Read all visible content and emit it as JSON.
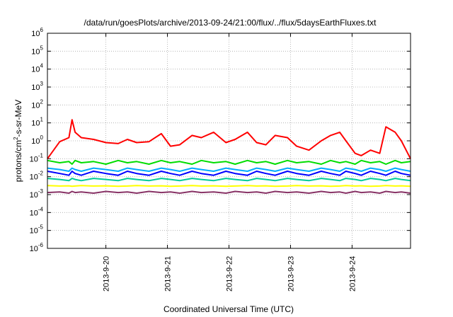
{
  "chart_data": {
    "type": "line",
    "title": "/data/run/goesPlots/archive/2013-09-24/21:00/flux/../flux/5daysEarthFluxes.txt",
    "xlabel": "Coordinated Universal Time (UTC)",
    "ylabel_parts": [
      "protons/cm",
      "2",
      "-s-sr-MeV"
    ],
    "yscale": "log",
    "ylim_exp": [
      -6,
      6
    ],
    "y_tick_labels": [
      {
        "base": "10",
        "exp": "-6"
      },
      {
        "base": "10",
        "exp": "-5"
      },
      {
        "base": "10",
        "exp": "-4"
      },
      {
        "base": "10",
        "exp": "-3"
      },
      {
        "base": "10",
        "exp": "-2"
      },
      {
        "base": "10",
        "exp": "-1"
      },
      {
        "base": "10",
        "exp": "0"
      },
      {
        "base": "10",
        "exp": "1"
      },
      {
        "base": "10",
        "exp": "2"
      },
      {
        "base": "10",
        "exp": "3"
      },
      {
        "base": "10",
        "exp": "4"
      },
      {
        "base": "10",
        "exp": "5"
      },
      {
        "base": "10",
        "exp": "6"
      }
    ],
    "x_range_days": [
      -0.95,
      4.95
    ],
    "x_ticks": [
      {
        "label": "2013-9-20",
        "day": 0
      },
      {
        "label": "2013-9-21",
        "day": 1
      },
      {
        "label": "2013-9-22",
        "day": 2
      },
      {
        "label": "2013-9-23",
        "day": 3
      },
      {
        "label": "2013-9-24",
        "day": 4
      }
    ],
    "grid": true,
    "series_x_days": [
      -0.95,
      -0.75,
      -0.6,
      -0.55,
      -0.5,
      -0.4,
      -0.2,
      0,
      0.2,
      0.35,
      0.5,
      0.7,
      0.9,
      1.05,
      1.2,
      1.4,
      1.55,
      1.75,
      1.95,
      2.1,
      2.3,
      2.45,
      2.6,
      2.75,
      2.95,
      3.1,
      3.3,
      3.5,
      3.65,
      3.8,
      3.9,
      4.05,
      4.15,
      4.3,
      4.45,
      4.55,
      4.7,
      4.8,
      4.95
    ],
    "series": [
      {
        "color": "#ff0000",
        "values": [
          0.1,
          0.9,
          1.5,
          15,
          3,
          1.5,
          1.2,
          0.8,
          0.7,
          1.2,
          0.8,
          0.9,
          2.5,
          0.5,
          0.6,
          2,
          1.5,
          3,
          0.8,
          1.2,
          3,
          0.8,
          0.6,
          2,
          1.5,
          0.5,
          0.3,
          1,
          2,
          3,
          1,
          0.2,
          0.15,
          0.3,
          0.2,
          6,
          3,
          1,
          0.1
        ]
      },
      {
        "color": "#00dd00",
        "values": [
          0.08,
          0.06,
          0.07,
          0.05,
          0.08,
          0.06,
          0.07,
          0.05,
          0.08,
          0.06,
          0.07,
          0.05,
          0.08,
          0.06,
          0.07,
          0.05,
          0.08,
          0.06,
          0.07,
          0.05,
          0.08,
          0.06,
          0.07,
          0.05,
          0.08,
          0.06,
          0.07,
          0.05,
          0.08,
          0.06,
          0.07,
          0.05,
          0.08,
          0.06,
          0.07,
          0.05,
          0.08,
          0.06,
          0.07
        ]
      },
      {
        "color": "#00aaff",
        "values": [
          0.03,
          0.025,
          0.02,
          0.03,
          0.025,
          0.02,
          0.03,
          0.025,
          0.02,
          0.03,
          0.025,
          0.02,
          0.03,
          0.025,
          0.02,
          0.03,
          0.025,
          0.02,
          0.03,
          0.025,
          0.02,
          0.03,
          0.025,
          0.02,
          0.03,
          0.025,
          0.02,
          0.03,
          0.025,
          0.02,
          0.03,
          0.025,
          0.02,
          0.03,
          0.025,
          0.02,
          0.03,
          0.025,
          0.02
        ]
      },
      {
        "color": "#0000ff",
        "values": [
          0.02,
          0.015,
          0.012,
          0.02,
          0.015,
          0.012,
          0.02,
          0.015,
          0.012,
          0.02,
          0.015,
          0.012,
          0.02,
          0.015,
          0.012,
          0.02,
          0.015,
          0.012,
          0.02,
          0.015,
          0.012,
          0.02,
          0.015,
          0.012,
          0.02,
          0.015,
          0.012,
          0.02,
          0.015,
          0.012,
          0.02,
          0.015,
          0.012,
          0.02,
          0.015,
          0.012,
          0.02,
          0.015,
          0.012
        ]
      },
      {
        "color": "#00cc99",
        "values": [
          0.008,
          0.007,
          0.006,
          0.008,
          0.007,
          0.006,
          0.008,
          0.007,
          0.006,
          0.008,
          0.007,
          0.006,
          0.008,
          0.007,
          0.006,
          0.008,
          0.007,
          0.006,
          0.008,
          0.007,
          0.006,
          0.008,
          0.007,
          0.006,
          0.008,
          0.007,
          0.006,
          0.008,
          0.007,
          0.006,
          0.008,
          0.007,
          0.006,
          0.008,
          0.007,
          0.006,
          0.008,
          0.007,
          0.006
        ]
      },
      {
        "color": "#ffff00",
        "values": [
          0.0032,
          0.003,
          0.0031,
          0.0029,
          0.003,
          0.0032,
          0.003,
          0.0031,
          0.0029,
          0.003,
          0.0032,
          0.003,
          0.0031,
          0.0029,
          0.003,
          0.0032,
          0.003,
          0.0031,
          0.0029,
          0.003,
          0.0032,
          0.003,
          0.0031,
          0.0029,
          0.003,
          0.0032,
          0.003,
          0.0031,
          0.0029,
          0.003,
          0.0032,
          0.003,
          0.0031,
          0.0029,
          0.003,
          0.0032,
          0.003,
          0.0031,
          0.0029
        ]
      },
      {
        "color": "#883366",
        "values": [
          0.0013,
          0.0014,
          0.0012,
          0.0015,
          0.0013,
          0.0014,
          0.0012,
          0.0015,
          0.0013,
          0.0014,
          0.0012,
          0.0015,
          0.0013,
          0.0014,
          0.0012,
          0.0015,
          0.0013,
          0.0014,
          0.0012,
          0.0015,
          0.0013,
          0.0014,
          0.0012,
          0.0015,
          0.0013,
          0.0014,
          0.0012,
          0.0015,
          0.0013,
          0.0014,
          0.0012,
          0.0015,
          0.0013,
          0.0014,
          0.0012,
          0.0015,
          0.0013,
          0.0014,
          0.0012
        ]
      }
    ]
  }
}
